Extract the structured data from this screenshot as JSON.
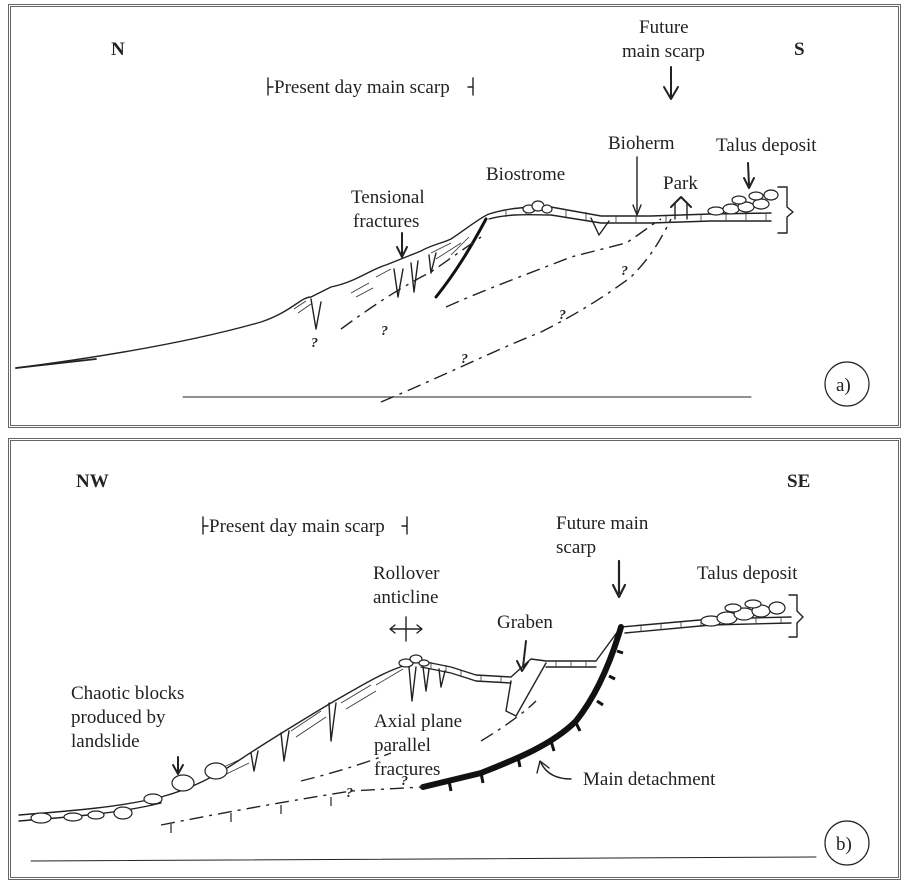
{
  "panel_a": {
    "dir_left": "N",
    "dir_right": "S",
    "present_scarp": "Present day main scarp",
    "future_scarp_1": "Future",
    "future_scarp_2": "main scarp",
    "bioherm": "Bioherm",
    "biostrome": "Biostrome",
    "park": "Park",
    "talus": "Talus deposit",
    "tensional_1": "Tensional",
    "tensional_2": "fractures",
    "panel_label": "a)"
  },
  "panel_b": {
    "dir_left": "NW",
    "dir_right": "SE",
    "present_scarp": "Present day main scarp",
    "future_scarp_1": "Future main",
    "future_scarp_2": "scarp",
    "talus": "Talus deposit",
    "rollover_1": "Rollover",
    "rollover_2": "anticline",
    "graben": "Graben",
    "chaotic_1": "Chaotic blocks",
    "chaotic_2": "produced by",
    "chaotic_3": "landslide",
    "axial_1": "Axial plane",
    "axial_2": "parallel",
    "axial_3": "fractures",
    "main_detachment": "Main detachment",
    "panel_label": "b)"
  },
  "question_mark": "?"
}
